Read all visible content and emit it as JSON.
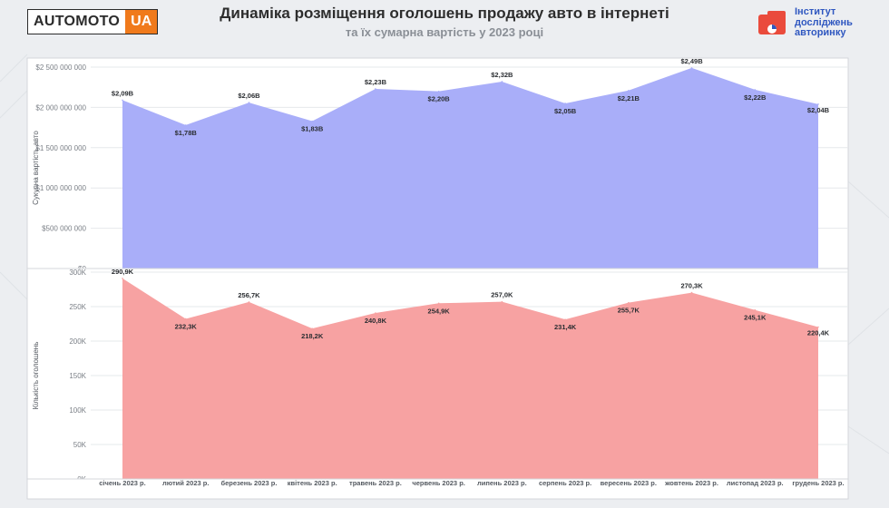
{
  "header": {
    "logo_main": "AUTOMOTO",
    "logo_accent": "UA",
    "title": "Динаміка розміщення оголошень продажу авто в інтернеті",
    "subtitle": "та їх сумарна вартість у 2023 році",
    "institute_lines": [
      "Інститут",
      "досліджень",
      "авторинку"
    ],
    "institute_color": "#2f57c0",
    "accent_color": "#f07a1c"
  },
  "chart_data": [
    {
      "type": "area",
      "ylabel": "Сукупна вартість авто",
      "ylim": [
        0,
        2500000000
      ],
      "yticks": [
        {
          "value": 0,
          "label": "$0"
        },
        {
          "value": 500000000,
          "label": "$500 000 000"
        },
        {
          "value": 1000000000,
          "label": "$1 000 000 000"
        },
        {
          "value": 1500000000,
          "label": "$1 500 000 000"
        },
        {
          "value": 2000000000,
          "label": "$2 000 000 000"
        },
        {
          "value": 2500000000,
          "label": "$2 500 000 000"
        }
      ],
      "color": "#a9aef9",
      "categories": [
        "січень 2023 р.",
        "лютий 2023 р.",
        "березень 2023 р.",
        "квітень 2023 р.",
        "травень 2023 р.",
        "червень 2023 р.",
        "липень 2023 р.",
        "серпень 2023 р.",
        "вересень 2023 р.",
        "жовтень 2023 р.",
        "листопад 2023 р.",
        "грудень 2023 р."
      ],
      "values": [
        2090000000,
        1780000000,
        2060000000,
        1830000000,
        2230000000,
        2200000000,
        2320000000,
        2050000000,
        2210000000,
        2490000000,
        2220000000,
        2040000000
      ],
      "data_labels": [
        "$2,09B",
        "$1,78B",
        "$2,06B",
        "$1,83B",
        "$2,23B",
        "$2,20B",
        "$2,32B",
        "$2,05B",
        "$2,21B",
        "$2,49B",
        "$2,22B",
        "$2,04B"
      ]
    },
    {
      "type": "area",
      "ylabel": "Кількість оголошень",
      "ylim": [
        0,
        300000
      ],
      "yticks": [
        {
          "value": 0,
          "label": "0K"
        },
        {
          "value": 50000,
          "label": "50K"
        },
        {
          "value": 100000,
          "label": "100K"
        },
        {
          "value": 150000,
          "label": "150K"
        },
        {
          "value": 200000,
          "label": "200K"
        },
        {
          "value": 250000,
          "label": "250K"
        },
        {
          "value": 300000,
          "label": "300K"
        }
      ],
      "color": "#f7a2a2",
      "categories": [
        "січень 2023 р.",
        "лютий 2023 р.",
        "березень 2023 р.",
        "квітень 2023 р.",
        "травень 2023 р.",
        "червень 2023 р.",
        "липень 2023 р.",
        "серпень 2023 р.",
        "вересень 2023 р.",
        "жовтень 2023 р.",
        "листопад 2023 р.",
        "грудень 2023 р."
      ],
      "values": [
        290900,
        232300,
        256700,
        218200,
        240800,
        254900,
        257000,
        231400,
        255700,
        270300,
        245100,
        220400
      ],
      "data_labels": [
        "290,9K",
        "232,3K",
        "256,7K",
        "218,2K",
        "240,8K",
        "254,9K",
        "257,0K",
        "231,4K",
        "255,7K",
        "270,3K",
        "245,1K",
        "220,4K"
      ]
    }
  ]
}
